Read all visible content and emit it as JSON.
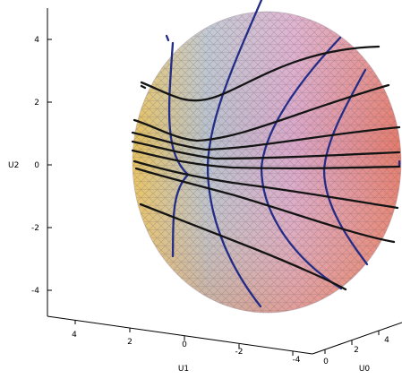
{
  "chart_data": {
    "type": "surface3d",
    "title": "",
    "axes": {
      "u2": {
        "label": "U2",
        "ticks": [
          "4",
          "2",
          "0",
          "-2",
          "-4"
        ],
        "range": [
          -5,
          5
        ]
      },
      "u1": {
        "label": "U1",
        "ticks": [
          "4",
          "2",
          "0",
          "-2",
          "-4"
        ],
        "range": [
          -5,
          5
        ]
      },
      "u0": {
        "label": "U0",
        "ticks": [
          "0",
          "2",
          "4"
        ],
        "range": [
          0,
          5
        ]
      }
    },
    "surface": {
      "shape": "hyperbolic sheet bounded by sphere",
      "colormap": [
        "#e6c24a",
        "#b8c0cc",
        "#d8a0c8",
        "#e07080",
        "#e87050"
      ]
    },
    "curve_families": [
      {
        "color": "#1a1a6e",
        "role": "blue level curves",
        "count": 6
      },
      {
        "color": "#111111",
        "role": "black level curves",
        "count": 9
      }
    ]
  }
}
